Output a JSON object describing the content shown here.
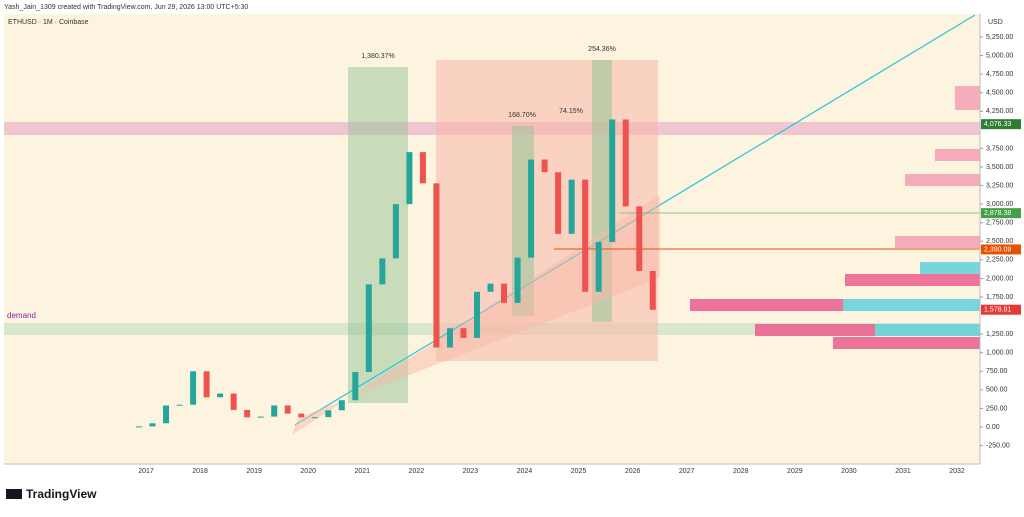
{
  "header": {
    "credit": "Yash_Jain_1309 created with TradingView.com, Jun 29, 2026 13:00 UTC+5:30",
    "symbol": "ETHUSD · 1M · Coinbase",
    "currency": "USD"
  },
  "price_axis": [
    {
      "value": 5250,
      "label": "5,250.00"
    },
    {
      "value": 5000,
      "label": "5,000.00"
    },
    {
      "value": 4750,
      "label": "4,750.00"
    },
    {
      "value": 4500,
      "label": "4,500.00"
    },
    {
      "value": 4250,
      "label": "4,250.00"
    },
    {
      "value": 3750,
      "label": "3,750.00"
    },
    {
      "value": 3500,
      "label": "3,500.00"
    },
    {
      "value": 3250,
      "label": "3,250.00"
    },
    {
      "value": 3000,
      "label": "3,000.00"
    },
    {
      "value": 2750,
      "label": "2,750.00"
    },
    {
      "value": 2500,
      "label": "2,500.00"
    },
    {
      "value": 2250,
      "label": "2,250.00"
    },
    {
      "value": 2000,
      "label": "2,000.00"
    },
    {
      "value": 1750,
      "label": "1,750.00"
    },
    {
      "value": 1250,
      "label": "1,250.00"
    },
    {
      "value": 1000,
      "label": "1,000.00"
    },
    {
      "value": 750,
      "label": "750.00"
    },
    {
      "value": 500,
      "label": "500.00"
    },
    {
      "value": 250,
      "label": "250.00"
    },
    {
      "value": 0,
      "label": "0.00"
    },
    {
      "value": -250,
      "label": "-250.00"
    }
  ],
  "time_axis": [
    "2017",
    "2018",
    "2019",
    "2020",
    "2021",
    "2022",
    "2023",
    "2024",
    "2025",
    "2026",
    "2027",
    "2028",
    "2029",
    "2030",
    "2031",
    "2032"
  ],
  "price_tags": [
    {
      "value": 4076.33,
      "label": "4,076.33",
      "color": "#2e7d32"
    },
    {
      "value": 2878.38,
      "label": "2,878.38",
      "color": "#43a047"
    },
    {
      "value": 2390.09,
      "label": "2,390.09",
      "color": "#e65100"
    },
    {
      "value": 1578.81,
      "label": "1,578.81",
      "color": "#e53935"
    }
  ],
  "annotations": {
    "gain_2021": "1,380.37%",
    "gain_2024a": "168.70%",
    "gain_2024b": "74.15%",
    "gain_2025": "254.36%",
    "zone": "demand"
  },
  "quarterly_close": [
    8,
    50,
    290,
    300,
    750,
    400,
    450,
    230,
    130,
    140,
    290,
    180,
    130,
    133,
    225,
    360,
    740,
    1920,
    2270,
    3000,
    3700,
    3280,
    1070,
    1330,
    1200,
    1820,
    1930,
    1670,
    2280,
    3600,
    3430,
    2600,
    3330,
    1820,
    2490,
    4140,
    2970,
    2100,
    1578
  ],
  "footer": {
    "brand": "TradingView"
  }
}
